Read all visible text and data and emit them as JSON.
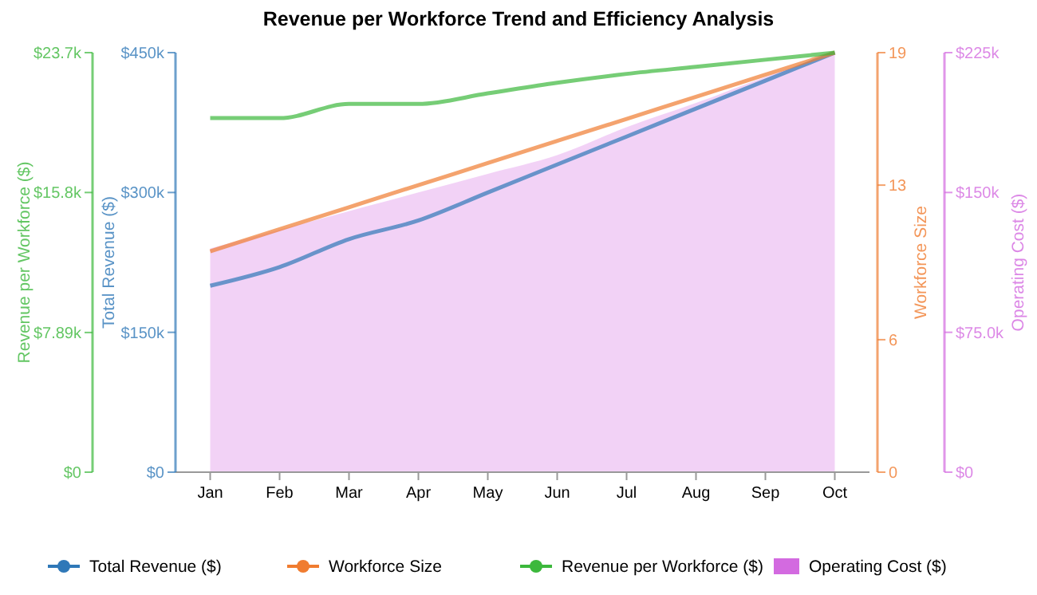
{
  "chart_data": [
    {
      "type": "line",
      "title": "Revenue per Workforce Trend and Efficiency Analysis",
      "categories": [
        "Jan",
        "Feb",
        "Mar",
        "Apr",
        "May",
        "Jun",
        "Jul",
        "Aug",
        "Sep",
        "Oct"
      ],
      "series": [
        {
          "name": "Total Revenue ($)",
          "color": "#2f78b8",
          "values": [
            200000,
            220000,
            250000,
            270000,
            300000,
            330000,
            360000,
            390000,
            420000,
            450000
          ]
        },
        {
          "name": "Workforce Size",
          "color": "#f07c30",
          "axis": "y2",
          "values": [
            10,
            11,
            12,
            13,
            14,
            15,
            16,
            17,
            18,
            19
          ]
        },
        {
          "name": "Operating Cost ($)",
          "color": "#d36ae0",
          "type": "area",
          "axis": "y3",
          "values": [
            120000,
            130000,
            140000,
            150000,
            160000,
            170000,
            185000,
            198000,
            212000,
            225000
          ]
        }
      ],
      "ylabel": "Total Revenue ($)",
      "ylim": [
        0,
        450000
      ],
      "yticks": [
        {
          "value": 0,
          "label": "$0"
        },
        {
          "value": 150000,
          "label": "$150k"
        },
        {
          "value": 300000,
          "label": "$300k"
        },
        {
          "value": 450000,
          "label": "$450k"
        }
      ],
      "y2label": "Workforce Size",
      "y2lim": [
        0,
        19
      ],
      "y2ticks": [
        0,
        6,
        13,
        19
      ],
      "y3label": "Operating Cost ($)",
      "y3lim": [
        0,
        225000
      ],
      "y3ticks": [
        {
          "value": 0,
          "label": "$0"
        },
        {
          "value": 75000,
          "label": "$75.0k"
        },
        {
          "value": 150000,
          "label": "$150k"
        },
        {
          "value": 225000,
          "label": "$225k"
        }
      ],
      "legend": "bottom",
      "line_style": "solid"
    },
    {
      "type": "line",
      "categories": [
        null,
        null,
        null,
        null,
        null,
        null,
        null,
        null,
        null,
        null
      ],
      "series": [
        {
          "name": "Revenue per Workforce ($)",
          "color": "#3cb83c",
          "values": [
            20000,
            20000,
            20800,
            20800,
            21400,
            22000,
            22500,
            22900,
            23300,
            23700
          ]
        }
      ],
      "ylabel": "Revenue per Workforce ($)",
      "ylim": [
        0,
        23700
      ],
      "yticks": [
        {
          "value": 0,
          "label": "$0"
        },
        {
          "value": 7890,
          "label": "$7.89k"
        },
        {
          "value": 15800,
          "label": "$15.8k"
        },
        {
          "value": 23700,
          "label": "$23.7k"
        }
      ],
      "tick_labels": "y",
      "legend": "bottom",
      "line_style": "solid"
    }
  ]
}
